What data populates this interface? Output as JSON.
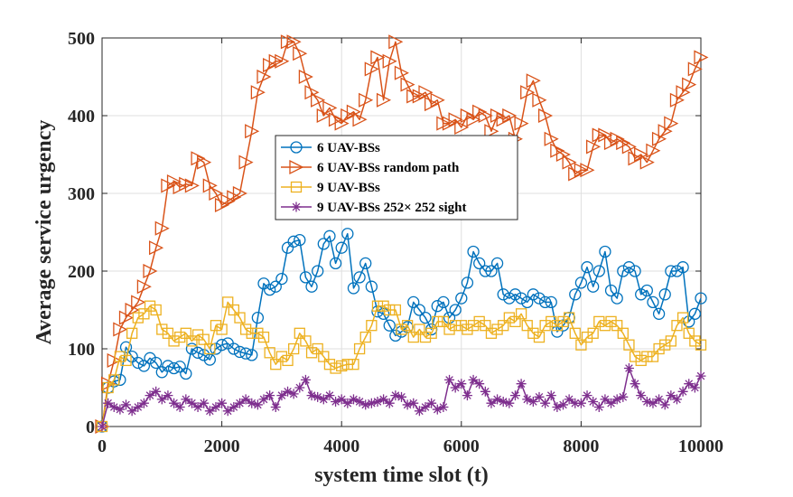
{
  "chart_data": {
    "type": "line",
    "title": "",
    "xlabel": "system time slot (t)",
    "ylabel": "Average service urgency",
    "xlim": [
      0,
      10000
    ],
    "ylim": [
      0,
      500
    ],
    "xticks": [
      "0",
      "2000",
      "4000",
      "6000",
      "8000",
      "10000"
    ],
    "yticks": [
      "0",
      "100",
      "200",
      "300",
      "400",
      "500"
    ],
    "grid": true,
    "legend_position": "center",
    "series": [
      {
        "name": "6 UAV-BSs",
        "color": "#0072BD",
        "marker": "circle",
        "x": [
          0,
          100,
          200,
          300,
          400,
          500,
          600,
          700,
          800,
          900,
          1000,
          1100,
          1200,
          1300,
          1400,
          1500,
          1600,
          1700,
          1800,
          1900,
          2000,
          2100,
          2200,
          2300,
          2400,
          2500,
          2600,
          2700,
          2800,
          2900,
          3000,
          3100,
          3200,
          3300,
          3400,
          3500,
          3600,
          3700,
          3800,
          3900,
          4000,
          4100,
          4200,
          4300,
          4400,
          4500,
          4600,
          4700,
          4800,
          4900,
          5000,
          5100,
          5200,
          5300,
          5400,
          5500,
          5600,
          5700,
          5800,
          5900,
          6000,
          6100,
          6200,
          6300,
          6400,
          6500,
          6600,
          6700,
          6800,
          6900,
          7000,
          7100,
          7200,
          7300,
          7400,
          7500,
          7600,
          7700,
          7800,
          7900,
          8000,
          8100,
          8200,
          8300,
          8400,
          8500,
          8600,
          8700,
          8800,
          8900,
          9000,
          9100,
          9200,
          9300,
          9400,
          9500,
          9600,
          9700,
          9800,
          9900,
          10000
        ],
        "values": [
          0,
          50,
          58,
          60,
          102,
          90,
          82,
          78,
          88,
          82,
          70,
          78,
          75,
          77,
          68,
          100,
          95,
          92,
          86,
          100,
          105,
          107,
          100,
          96,
          94,
          92,
          140,
          184,
          176,
          180,
          190,
          230,
          238,
          240,
          192,
          180,
          200,
          235,
          245,
          210,
          230,
          248,
          178,
          192,
          210,
          180,
          148,
          145,
          130,
          117,
          122,
          128,
          160,
          150,
          140,
          125,
          155,
          160,
          140,
          150,
          165,
          185,
          225,
          210,
          200,
          200,
          210,
          170,
          165,
          170,
          165,
          160,
          170,
          165,
          160,
          160,
          122,
          130,
          140,
          170,
          185,
          205,
          180,
          200,
          225,
          175,
          165,
          200,
          205,
          200,
          170,
          175,
          160,
          145,
          170,
          200,
          200,
          205,
          135,
          145,
          165
        ]
      },
      {
        "name": "6 UAV-BSs random path",
        "color": "#D95319",
        "marker": "triangle-right",
        "x": [
          0,
          100,
          200,
          300,
          400,
          500,
          600,
          700,
          800,
          900,
          1000,
          1100,
          1200,
          1300,
          1400,
          1500,
          1600,
          1700,
          1800,
          1900,
          2000,
          2100,
          2200,
          2300,
          2400,
          2500,
          2600,
          2700,
          2800,
          2900,
          3000,
          3100,
          3200,
          3300,
          3400,
          3500,
          3600,
          3700,
          3800,
          3900,
          4000,
          4100,
          4200,
          4300,
          4400,
          4500,
          4600,
          4700,
          4800,
          4900,
          5000,
          5100,
          5200,
          5300,
          5400,
          5500,
          5600,
          5700,
          5800,
          5900,
          6000,
          6100,
          6200,
          6300,
          6400,
          6500,
          6600,
          6700,
          6800,
          6900,
          7000,
          7100,
          7200,
          7300,
          7400,
          7500,
          7600,
          7700,
          7800,
          7900,
          8000,
          8100,
          8200,
          8300,
          8400,
          8500,
          8600,
          8700,
          8800,
          8900,
          9000,
          9100,
          9200,
          9300,
          9400,
          9500,
          9600,
          9700,
          9800,
          9900,
          10000
        ],
        "values": [
          0,
          55,
          85,
          125,
          140,
          150,
          160,
          180,
          200,
          230,
          255,
          310,
          315,
          308,
          312,
          310,
          345,
          340,
          310,
          300,
          285,
          290,
          295,
          300,
          340,
          380,
          430,
          450,
          465,
          470,
          470,
          495,
          495,
          480,
          450,
          430,
          420,
          400,
          410,
          395,
          390,
          400,
          405,
          395,
          420,
          460,
          475,
          420,
          470,
          495,
          455,
          440,
          425,
          425,
          430,
          415,
          420,
          390,
          390,
          395,
          385,
          400,
          395,
          405,
          400,
          380,
          400,
          395,
          400,
          370,
          390,
          430,
          445,
          420,
          400,
          370,
          355,
          350,
          340,
          325,
          330,
          330,
          360,
          375,
          375,
          365,
          370,
          365,
          360,
          345,
          350,
          340,
          355,
          370,
          380,
          390,
          420,
          430,
          440,
          460,
          475
        ]
      },
      {
        "name": "9 UAV-BSs",
        "color": "#EDB120",
        "marker": "square",
        "x": [
          0,
          100,
          200,
          300,
          400,
          500,
          600,
          700,
          800,
          900,
          1000,
          1100,
          1200,
          1300,
          1400,
          1500,
          1600,
          1700,
          1800,
          1900,
          2000,
          2100,
          2200,
          2300,
          2400,
          2500,
          2600,
          2700,
          2800,
          2900,
          3000,
          3100,
          3200,
          3300,
          3400,
          3500,
          3600,
          3700,
          3800,
          3900,
          4000,
          4100,
          4200,
          4300,
          4400,
          4500,
          4600,
          4700,
          4800,
          4900,
          5000,
          5100,
          5200,
          5300,
          5400,
          5500,
          5600,
          5700,
          5800,
          5900,
          6000,
          6100,
          6200,
          6300,
          6400,
          6500,
          6600,
          6700,
          6800,
          6900,
          7000,
          7100,
          7200,
          7300,
          7400,
          7500,
          7600,
          7700,
          7800,
          7900,
          8000,
          8100,
          8200,
          8300,
          8400,
          8500,
          8600,
          8700,
          8800,
          8900,
          9000,
          9100,
          9200,
          9300,
          9400,
          9500,
          9600,
          9700,
          9800,
          9900,
          10000
        ],
        "values": [
          0,
          50,
          60,
          90,
          85,
          120,
          140,
          145,
          155,
          150,
          125,
          120,
          110,
          115,
          120,
          110,
          118,
          112,
          100,
          130,
          125,
          160,
          150,
          140,
          125,
          120,
          120,
          115,
          95,
          80,
          90,
          85,
          100,
          120,
          110,
          95,
          100,
          90,
          80,
          75,
          78,
          80,
          80,
          100,
          115,
          130,
          155,
          155,
          150,
          150,
          125,
          130,
          115,
          125,
          115,
          120,
          135,
          135,
          125,
          130,
          130,
          125,
          130,
          135,
          130,
          120,
          125,
          130,
          140,
          135,
          145,
          130,
          120,
          115,
          130,
          135,
          130,
          135,
          140,
          120,
          105,
          115,
          120,
          135,
          130,
          135,
          130,
          120,
          105,
          90,
          85,
          90,
          90,
          100,
          105,
          110,
          130,
          140,
          120,
          110,
          105
        ]
      },
      {
        "name": "9 UAV-BSs 252× 252 sight",
        "color": "#7E2F8E",
        "marker": "star",
        "x": [
          0,
          100,
          200,
          300,
          400,
          500,
          600,
          700,
          800,
          900,
          1000,
          1100,
          1200,
          1300,
          1400,
          1500,
          1600,
          1700,
          1800,
          1900,
          2000,
          2100,
          2200,
          2300,
          2400,
          2500,
          2600,
          2700,
          2800,
          2900,
          3000,
          3100,
          3200,
          3300,
          3400,
          3500,
          3600,
          3700,
          3800,
          3900,
          4000,
          4100,
          4200,
          4300,
          4400,
          4500,
          4600,
          4700,
          4800,
          4900,
          5000,
          5100,
          5200,
          5300,
          5400,
          5500,
          5600,
          5700,
          5800,
          5900,
          6000,
          6100,
          6200,
          6300,
          6400,
          6500,
          6600,
          6700,
          6800,
          6900,
          7000,
          7100,
          7200,
          7300,
          7400,
          7500,
          7600,
          7700,
          7800,
          7900,
          8000,
          8100,
          8200,
          8300,
          8400,
          8500,
          8600,
          8700,
          8800,
          8900,
          9000,
          9100,
          9200,
          9300,
          9400,
          9500,
          9600,
          9700,
          9800,
          9900,
          10000
        ],
        "values": [
          0,
          30,
          25,
          22,
          28,
          20,
          25,
          30,
          40,
          45,
          35,
          40,
          30,
          25,
          35,
          30,
          25,
          30,
          20,
          25,
          30,
          20,
          25,
          30,
          35,
          30,
          28,
          35,
          40,
          25,
          40,
          45,
          42,
          50,
          60,
          40,
          38,
          35,
          40,
          32,
          35,
          30,
          35,
          32,
          28,
          30,
          32,
          35,
          30,
          40,
          38,
          28,
          30,
          20,
          25,
          30,
          22,
          25,
          60,
          50,
          55,
          40,
          60,
          55,
          45,
          30,
          35,
          32,
          30,
          40,
          55,
          35,
          32,
          38,
          30,
          40,
          25,
          28,
          35,
          30,
          30,
          40,
          32,
          25,
          35,
          30,
          35,
          38,
          75,
          55,
          40,
          32,
          30,
          35,
          28,
          40,
          35,
          45,
          55,
          50,
          65
        ]
      }
    ]
  }
}
